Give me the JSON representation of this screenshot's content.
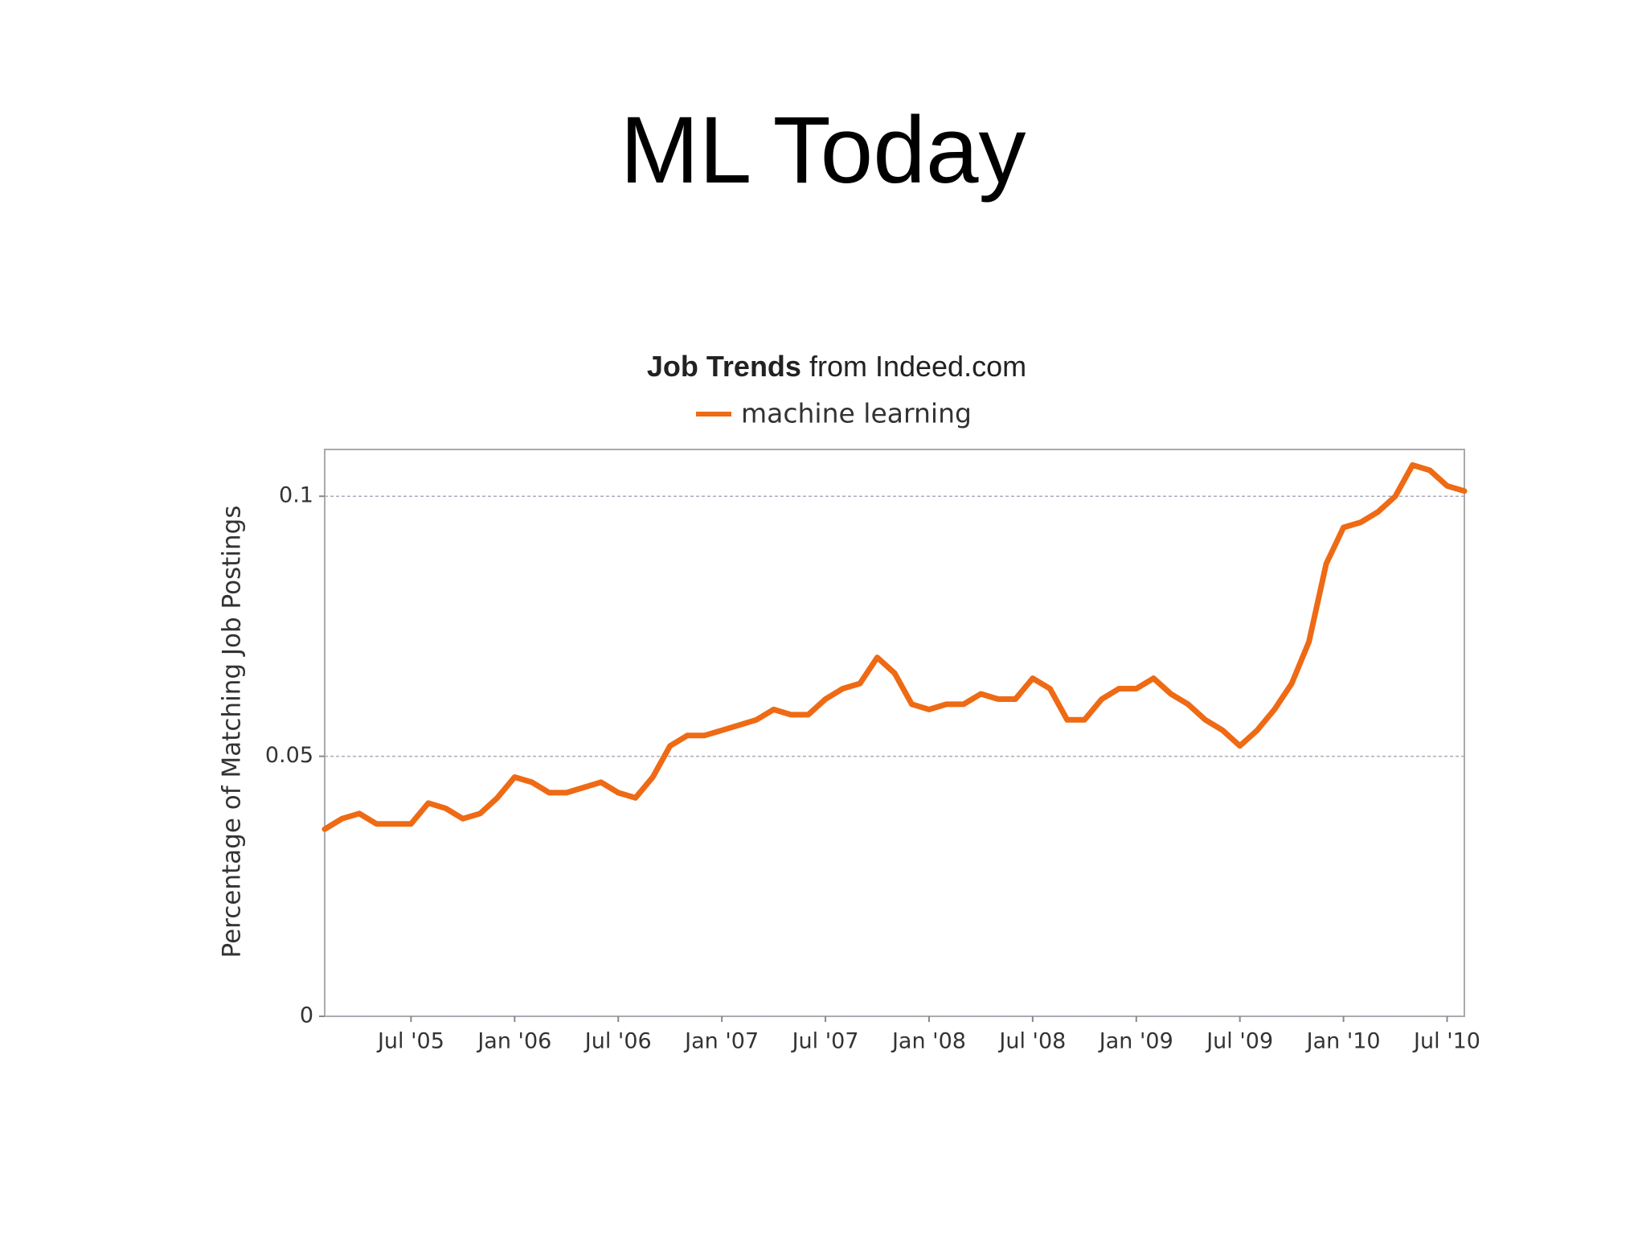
{
  "slide": {
    "title": "ML Today"
  },
  "chart_data": {
    "type": "line",
    "title": "Job Trends",
    "subtitle": "from Indeed.com",
    "y_label": "Percentage of Matching Job Postings",
    "x": [
      "2005-02",
      "2005-03",
      "2005-04",
      "2005-05",
      "2005-06",
      "2005-07",
      "2005-08",
      "2005-09",
      "2005-10",
      "2005-11",
      "2005-12",
      "2006-01",
      "2006-02",
      "2006-03",
      "2006-04",
      "2006-05",
      "2006-06",
      "2006-07",
      "2006-08",
      "2006-09",
      "2006-10",
      "2006-11",
      "2006-12",
      "2007-01",
      "2007-02",
      "2007-03",
      "2007-04",
      "2007-05",
      "2007-06",
      "2007-07",
      "2007-08",
      "2007-09",
      "2007-10",
      "2007-11",
      "2007-12",
      "2008-01",
      "2008-02",
      "2008-03",
      "2008-04",
      "2008-05",
      "2008-06",
      "2008-07",
      "2008-08",
      "2008-09",
      "2008-10",
      "2008-11",
      "2008-12",
      "2009-01",
      "2009-02",
      "2009-03",
      "2009-04",
      "2009-05",
      "2009-06",
      "2009-07",
      "2009-08",
      "2009-09",
      "2009-10",
      "2009-11",
      "2009-12",
      "2010-01",
      "2010-02",
      "2010-03",
      "2010-04",
      "2010-05",
      "2010-06",
      "2010-07",
      "2010-08"
    ],
    "series": [
      {
        "name": "machine learning",
        "color": "#ee6a14",
        "values": [
          0.036,
          0.038,
          0.039,
          0.037,
          0.037,
          0.037,
          0.041,
          0.04,
          0.038,
          0.039,
          0.042,
          0.046,
          0.045,
          0.043,
          0.043,
          0.044,
          0.045,
          0.043,
          0.042,
          0.046,
          0.052,
          0.054,
          0.054,
          0.055,
          0.056,
          0.057,
          0.059,
          0.058,
          0.058,
          0.061,
          0.063,
          0.064,
          0.069,
          0.066,
          0.06,
          0.059,
          0.06,
          0.06,
          0.062,
          0.061,
          0.061,
          0.065,
          0.063,
          0.057,
          0.057,
          0.061,
          0.063,
          0.063,
          0.065,
          0.062,
          0.06,
          0.057,
          0.055,
          0.052,
          0.055,
          0.059,
          0.064,
          0.072,
          0.087,
          0.094,
          0.095,
          0.097,
          0.1,
          0.106,
          0.105,
          0.102,
          0.101
        ]
      }
    ],
    "xlim": [
      "2005-02",
      "2010-08"
    ],
    "xticks": [
      {
        "value": "2005-07",
        "label": "Jul '05"
      },
      {
        "value": "2006-01",
        "label": "Jan '06"
      },
      {
        "value": "2006-07",
        "label": "Jul '06"
      },
      {
        "value": "2007-01",
        "label": "Jan '07"
      },
      {
        "value": "2007-07",
        "label": "Jul '07"
      },
      {
        "value": "2008-01",
        "label": "Jan '08"
      },
      {
        "value": "2008-07",
        "label": "Jul '08"
      },
      {
        "value": "2009-01",
        "label": "Jan '09"
      },
      {
        "value": "2009-07",
        "label": "Jul '09"
      },
      {
        "value": "2010-01",
        "label": "Jan '10"
      },
      {
        "value": "2010-07",
        "label": "Jul '10"
      }
    ],
    "ylim": [
      0,
      0.109
    ],
    "yticks": [
      0,
      0.05,
      0.1
    ],
    "grid": true
  }
}
